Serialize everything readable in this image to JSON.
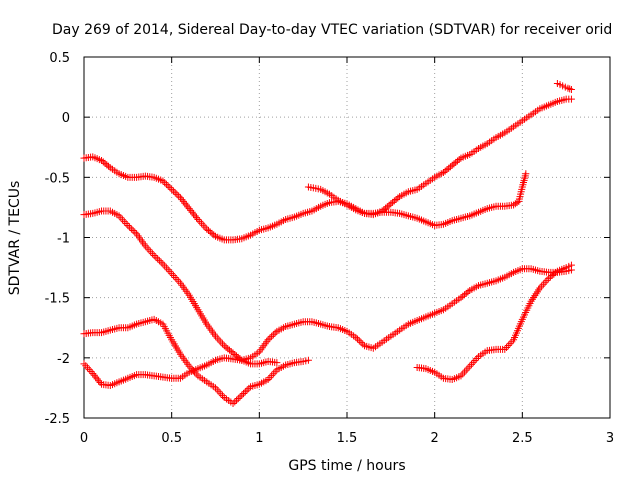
{
  "chart_data": {
    "type": "scatter",
    "title": "Day 269 of 2014, Sidereal Day-to-day VTEC variation (SDTVAR) for receiver orid",
    "xlabel": "GPS time / hours",
    "ylabel": "SDTVAR / TECUs",
    "xlim": [
      0,
      3
    ],
    "ylim": [
      -2.5,
      0.5
    ],
    "xticks": [
      0,
      0.5,
      1,
      1.5,
      2,
      2.5,
      3
    ],
    "xtick_labels": [
      "0",
      "0.5",
      "1",
      "1.5",
      "2",
      "2.5",
      "3"
    ],
    "yticks": [
      -2.5,
      -2,
      -1.5,
      -1,
      -0.5,
      0,
      0.5
    ],
    "ytick_labels": [
      "-2.5",
      "-2",
      "-1.5",
      "-1",
      "-0.5",
      "0",
      "0.5"
    ],
    "grid": true,
    "marker": "+",
    "color": "#ff0000",
    "series": [
      {
        "name": "series-1",
        "points": [
          [
            0,
            -0.34
          ],
          [
            0.05,
            -0.33
          ],
          [
            0.1,
            -0.36
          ],
          [
            0.15,
            -0.42
          ],
          [
            0.2,
            -0.47
          ],
          [
            0.25,
            -0.5
          ],
          [
            0.3,
            -0.5
          ],
          [
            0.35,
            -0.49
          ],
          [
            0.4,
            -0.5
          ],
          [
            0.45,
            -0.53
          ],
          [
            0.5,
            -0.6
          ],
          [
            0.55,
            -0.67
          ],
          [
            0.6,
            -0.76
          ],
          [
            0.65,
            -0.85
          ],
          [
            0.7,
            -0.93
          ],
          [
            0.75,
            -0.99
          ],
          [
            0.8,
            -1.02
          ],
          [
            0.85,
            -1.02
          ],
          [
            0.9,
            -1.01
          ],
          [
            0.95,
            -0.98
          ],
          [
            1.0,
            -0.94
          ],
          [
            1.05,
            -0.92
          ],
          [
            1.1,
            -0.89
          ],
          [
            1.15,
            -0.85
          ],
          [
            1.2,
            -0.83
          ],
          [
            1.25,
            -0.8
          ],
          [
            1.3,
            -0.78
          ],
          [
            1.35,
            -0.74
          ],
          [
            1.4,
            -0.71
          ],
          [
            1.45,
            -0.7
          ],
          [
            1.5,
            -0.72
          ],
          [
            1.55,
            -0.76
          ],
          [
            1.6,
            -0.8
          ],
          [
            1.65,
            -0.81
          ],
          [
            1.7,
            -0.78
          ],
          [
            1.75,
            -0.72
          ],
          [
            1.8,
            -0.66
          ],
          [
            1.85,
            -0.62
          ],
          [
            1.9,
            -0.6
          ],
          [
            1.95,
            -0.55
          ],
          [
            2.0,
            -0.5
          ],
          [
            2.05,
            -0.46
          ],
          [
            2.1,
            -0.4
          ],
          [
            2.15,
            -0.34
          ],
          [
            2.2,
            -0.31
          ],
          [
            2.25,
            -0.26
          ],
          [
            2.3,
            -0.22
          ],
          [
            2.35,
            -0.17
          ],
          [
            2.4,
            -0.13
          ],
          [
            2.45,
            -0.08
          ],
          [
            2.5,
            -0.03
          ],
          [
            2.55,
            0.02
          ],
          [
            2.6,
            0.07
          ],
          [
            2.65,
            0.1
          ],
          [
            2.7,
            0.13
          ],
          [
            2.75,
            0.15
          ],
          [
            2.78,
            0.15
          ]
        ]
      },
      {
        "name": "series-1-tail",
        "points": [
          [
            2.7,
            0.28
          ],
          [
            2.73,
            0.26
          ],
          [
            2.76,
            0.24
          ],
          [
            2.78,
            0.23
          ]
        ]
      },
      {
        "name": "series-2",
        "points": [
          [
            0,
            -0.81
          ],
          [
            0.05,
            -0.8
          ],
          [
            0.1,
            -0.78
          ],
          [
            0.15,
            -0.78
          ],
          [
            0.2,
            -0.82
          ],
          [
            0.25,
            -0.9
          ],
          [
            0.3,
            -0.97
          ],
          [
            0.35,
            -1.07
          ],
          [
            0.4,
            -1.15
          ],
          [
            0.45,
            -1.22
          ],
          [
            0.5,
            -1.3
          ],
          [
            0.55,
            -1.38
          ],
          [
            0.6,
            -1.48
          ],
          [
            0.65,
            -1.6
          ],
          [
            0.7,
            -1.72
          ],
          [
            0.75,
            -1.82
          ],
          [
            0.8,
            -1.9
          ],
          [
            0.85,
            -1.96
          ],
          [
            0.9,
            -2.02
          ],
          [
            0.95,
            -2.05
          ],
          [
            1.0,
            -2.05
          ],
          [
            1.05,
            -2.03
          ],
          [
            1.1,
            -2.04
          ]
        ]
      },
      {
        "name": "series-3",
        "points": [
          [
            0,
            -1.8
          ],
          [
            0.05,
            -1.79
          ],
          [
            0.1,
            -1.79
          ],
          [
            0.15,
            -1.77
          ],
          [
            0.2,
            -1.75
          ],
          [
            0.25,
            -1.75
          ],
          [
            0.3,
            -1.72
          ],
          [
            0.35,
            -1.7
          ],
          [
            0.4,
            -1.68
          ],
          [
            0.45,
            -1.72
          ],
          [
            0.5,
            -1.85
          ],
          [
            0.55,
            -1.97
          ],
          [
            0.6,
            -2.07
          ],
          [
            0.65,
            -2.15
          ],
          [
            0.7,
            -2.2
          ],
          [
            0.75,
            -2.25
          ],
          [
            0.8,
            -2.33
          ],
          [
            0.85,
            -2.38
          ],
          [
            0.9,
            -2.31
          ],
          [
            0.95,
            -2.24
          ],
          [
            1.0,
            -2.22
          ],
          [
            1.05,
            -2.18
          ],
          [
            1.1,
            -2.1
          ],
          [
            1.15,
            -2.06
          ],
          [
            1.2,
            -2.04
          ],
          [
            1.25,
            -2.03
          ],
          [
            1.28,
            -2.02
          ]
        ]
      },
      {
        "name": "series-4",
        "points": [
          [
            0,
            -2.05
          ],
          [
            0.05,
            -2.13
          ],
          [
            0.1,
            -2.22
          ],
          [
            0.15,
            -2.23
          ],
          [
            0.2,
            -2.2
          ],
          [
            0.25,
            -2.17
          ],
          [
            0.3,
            -2.14
          ],
          [
            0.35,
            -2.14
          ],
          [
            0.4,
            -2.15
          ],
          [
            0.45,
            -2.16
          ],
          [
            0.5,
            -2.17
          ],
          [
            0.55,
            -2.17
          ],
          [
            0.6,
            -2.12
          ],
          [
            0.65,
            -2.09
          ],
          [
            0.7,
            -2.06
          ],
          [
            0.75,
            -2.02
          ],
          [
            0.8,
            -2.0
          ],
          [
            0.85,
            -2.01
          ],
          [
            0.9,
            -2.02
          ],
          [
            0.95,
            -2.0
          ],
          [
            1.0,
            -1.95
          ],
          [
            1.05,
            -1.85
          ],
          [
            1.1,
            -1.78
          ],
          [
            1.15,
            -1.74
          ],
          [
            1.2,
            -1.72
          ],
          [
            1.25,
            -1.7
          ],
          [
            1.3,
            -1.7
          ],
          [
            1.35,
            -1.72
          ],
          [
            1.4,
            -1.74
          ],
          [
            1.45,
            -1.75
          ],
          [
            1.5,
            -1.78
          ],
          [
            1.55,
            -1.83
          ],
          [
            1.6,
            -1.9
          ],
          [
            1.65,
            -1.92
          ],
          [
            1.7,
            -1.87
          ],
          [
            1.75,
            -1.82
          ],
          [
            1.8,
            -1.77
          ],
          [
            1.85,
            -1.72
          ],
          [
            1.9,
            -1.69
          ],
          [
            1.95,
            -1.66
          ],
          [
            2.0,
            -1.63
          ],
          [
            2.05,
            -1.6
          ],
          [
            2.1,
            -1.55
          ],
          [
            2.15,
            -1.5
          ],
          [
            2.2,
            -1.44
          ],
          [
            2.25,
            -1.4
          ],
          [
            2.3,
            -1.38
          ],
          [
            2.35,
            -1.36
          ],
          [
            2.4,
            -1.33
          ],
          [
            2.45,
            -1.29
          ],
          [
            2.5,
            -1.26
          ],
          [
            2.55,
            -1.26
          ],
          [
            2.6,
            -1.28
          ],
          [
            2.65,
            -1.29
          ],
          [
            2.7,
            -1.29
          ],
          [
            2.75,
            -1.28
          ],
          [
            2.78,
            -1.27
          ]
        ]
      },
      {
        "name": "series-5",
        "points": [
          [
            1.28,
            -0.58
          ],
          [
            1.35,
            -0.6
          ],
          [
            1.4,
            -0.64
          ],
          [
            1.45,
            -0.69
          ],
          [
            1.5,
            -0.73
          ],
          [
            1.55,
            -0.77
          ],
          [
            1.6,
            -0.8
          ],
          [
            1.65,
            -0.8
          ],
          [
            1.7,
            -0.79
          ],
          [
            1.75,
            -0.79
          ],
          [
            1.8,
            -0.8
          ],
          [
            1.85,
            -0.82
          ],
          [
            1.9,
            -0.84
          ],
          [
            1.95,
            -0.87
          ],
          [
            2.0,
            -0.9
          ],
          [
            2.05,
            -0.89
          ],
          [
            2.1,
            -0.86
          ],
          [
            2.15,
            -0.84
          ],
          [
            2.2,
            -0.82
          ],
          [
            2.25,
            -0.79
          ],
          [
            2.3,
            -0.76
          ],
          [
            2.35,
            -0.74
          ],
          [
            2.4,
            -0.74
          ],
          [
            2.45,
            -0.73
          ],
          [
            2.48,
            -0.7
          ],
          [
            2.5,
            -0.58
          ],
          [
            2.52,
            -0.47
          ]
        ]
      },
      {
        "name": "series-6",
        "points": [
          [
            1.9,
            -2.08
          ],
          [
            1.95,
            -2.09
          ],
          [
            2.0,
            -2.12
          ],
          [
            2.05,
            -2.17
          ],
          [
            2.1,
            -2.18
          ],
          [
            2.15,
            -2.15
          ],
          [
            2.2,
            -2.07
          ],
          [
            2.25,
            -1.99
          ],
          [
            2.3,
            -1.94
          ],
          [
            2.35,
            -1.93
          ],
          [
            2.4,
            -1.93
          ],
          [
            2.45,
            -1.85
          ],
          [
            2.5,
            -1.68
          ],
          [
            2.55,
            -1.53
          ],
          [
            2.6,
            -1.42
          ],
          [
            2.65,
            -1.34
          ],
          [
            2.7,
            -1.28
          ],
          [
            2.75,
            -1.25
          ],
          [
            2.78,
            -1.23
          ]
        ]
      }
    ]
  }
}
